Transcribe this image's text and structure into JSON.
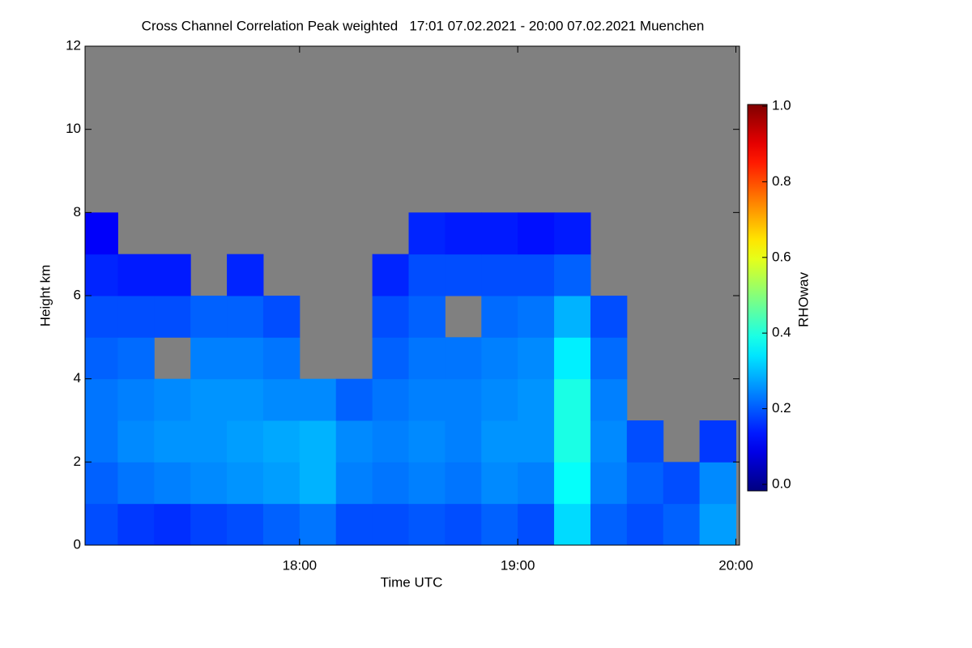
{
  "chart_data": {
    "type": "heatmap",
    "title": "Cross Channel Correlation Peak weighted   17:01 07.02.2021 - 20:00 07.02.2021 Muenchen",
    "xlabel": "Time UTC",
    "ylabel": "Height km",
    "colorbar_label": "RHOwav",
    "colormap": "jet",
    "missing_color": "#808080",
    "x": [
      5,
      15,
      25,
      35,
      45,
      55,
      65,
      75,
      85,
      95,
      105,
      115,
      125,
      135,
      145,
      155,
      165,
      175
    ],
    "y": [
      0.5,
      1.5,
      2.5,
      3.5,
      4.5,
      5.5,
      6.5,
      7.5
    ],
    "values": [
      [
        0.2,
        0.18,
        0.17,
        0.19,
        0.2,
        0.22,
        0.24,
        0.2,
        0.2,
        0.21,
        0.2,
        0.22,
        0.2,
        0.34,
        0.22,
        0.2,
        0.22,
        0.28
      ],
      [
        0.22,
        0.24,
        0.25,
        0.26,
        0.27,
        0.28,
        0.3,
        0.25,
        0.24,
        0.25,
        0.24,
        0.26,
        0.25,
        0.38,
        0.25,
        0.22,
        0.2,
        0.26
      ],
      [
        0.24,
        0.26,
        0.27,
        0.27,
        0.28,
        0.29,
        0.3,
        0.26,
        0.25,
        0.26,
        0.25,
        0.27,
        0.27,
        0.4,
        0.26,
        0.2,
        null,
        0.18
      ],
      [
        0.24,
        0.25,
        0.26,
        0.27,
        0.27,
        0.26,
        0.26,
        0.22,
        0.24,
        0.25,
        0.25,
        0.26,
        0.27,
        0.4,
        0.25,
        null,
        null,
        null
      ],
      [
        0.22,
        0.23,
        null,
        0.25,
        0.25,
        0.24,
        null,
        null,
        0.22,
        0.24,
        0.24,
        0.25,
        0.26,
        0.36,
        0.23,
        null,
        null,
        null
      ],
      [
        0.2,
        0.2,
        0.2,
        0.22,
        0.22,
        0.2,
        null,
        null,
        0.2,
        0.22,
        null,
        0.23,
        0.24,
        0.3,
        0.2,
        null,
        null,
        null
      ],
      [
        0.16,
        0.15,
        0.15,
        null,
        0.16,
        null,
        null,
        null,
        0.16,
        0.2,
        0.2,
        0.2,
        0.2,
        0.22,
        null,
        null,
        null,
        null
      ],
      [
        0.12,
        null,
        null,
        null,
        null,
        null,
        null,
        null,
        null,
        0.16,
        0.15,
        0.15,
        0.14,
        0.15,
        null,
        null,
        null,
        null
      ]
    ],
    "xlim": [
      1,
      181
    ],
    "ylim": [
      0,
      12
    ],
    "xticks": [
      {
        "value": 60,
        "label": "18:00"
      },
      {
        "value": 120,
        "label": "19:00"
      },
      {
        "value": 180,
        "label": "20:00"
      }
    ],
    "yticks": [
      0,
      2,
      4,
      6,
      8,
      10,
      12
    ],
    "clim": [
      0,
      1
    ],
    "cticks": [
      {
        "value": 0,
        "label": "0.0"
      },
      {
        "value": 0.2,
        "label": "0.2"
      },
      {
        "value": 0.4,
        "label": "0.4"
      },
      {
        "value": 0.6,
        "label": "0.6"
      },
      {
        "value": 0.8,
        "label": "0.8"
      },
      {
        "value": 1,
        "label": "1.0"
      }
    ]
  }
}
